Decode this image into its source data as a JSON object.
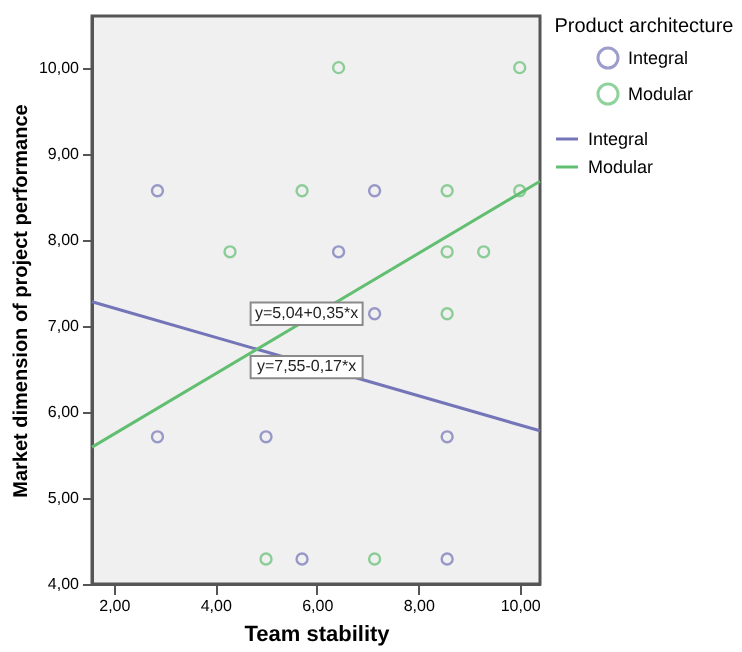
{
  "chart_data": {
    "type": "scatter",
    "xlabel": "Team stability",
    "ylabel": "Market dimension of project performance",
    "legend_title": "Product architecture",
    "legend": "right",
    "marker": "circle",
    "grid": false,
    "xlim": [
      1.57,
      10.4
    ],
    "ylim": [
      4,
      10.6
    ],
    "xticks": [
      {
        "value": 2,
        "label": "2,00"
      },
      {
        "value": 4,
        "label": "4,00"
      },
      {
        "value": 6,
        "label": "6,00"
      },
      {
        "value": 8,
        "label": "8,00"
      },
      {
        "value": 10,
        "label": "10,00"
      }
    ],
    "yticks": [
      {
        "value": 4,
        "label": "4,00"
      },
      {
        "value": 5,
        "label": "5,00"
      },
      {
        "value": 6,
        "label": "6,00"
      },
      {
        "value": 7,
        "label": "7,00"
      },
      {
        "value": 8,
        "label": "8,00"
      },
      {
        "value": 9,
        "label": "9,00"
      },
      {
        "value": 10,
        "label": "10,00"
      }
    ],
    "series": [
      {
        "name": "Integral",
        "color": "#7474b8",
        "x": [
          2.86,
          7.14,
          6.43,
          7.14,
          2.86,
          5.0,
          8.57,
          5.71,
          8.57
        ],
        "values": [
          8.57,
          8.57,
          7.86,
          7.14,
          5.71,
          5.71,
          5.71,
          4.29,
          4.29
        ]
      },
      {
        "name": "Modular",
        "color": "#62bf72",
        "x": [
          6.43,
          10.0,
          5.71,
          8.57,
          10.0,
          4.29,
          8.57,
          9.29,
          8.57,
          5.0,
          7.14
        ],
        "values": [
          10.0,
          10.0,
          8.57,
          8.57,
          8.57,
          7.86,
          7.86,
          7.86,
          7.14,
          4.29,
          4.29
        ]
      },
      {
        "name": "Integral",
        "type": "line",
        "color": "#7474b8",
        "marker": "none",
        "line_style": "solid",
        "x": [
          1.57,
          10.4
        ],
        "values": [
          7.28,
          5.78
        ]
      },
      {
        "name": "Modular",
        "type": "line",
        "color": "#62bf72",
        "marker": "none",
        "line_style": "solid",
        "x": [
          1.57,
          10.4
        ],
        "values": [
          5.59,
          8.68
        ]
      }
    ],
    "annotations": [
      {
        "text": "y=5,04+0,35*x",
        "x": 5.8,
        "y": 7.14
      },
      {
        "text": "y=7,55-0,17*x",
        "x": 5.8,
        "y": 6.52
      }
    ]
  }
}
